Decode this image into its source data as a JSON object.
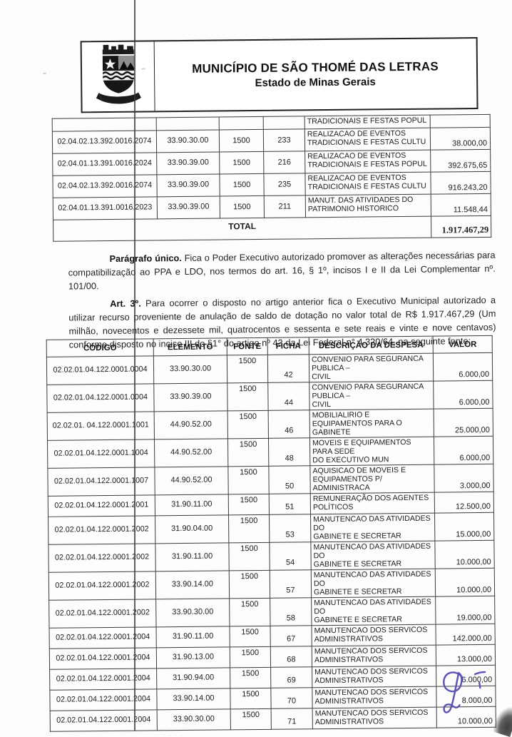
{
  "colors": {
    "ink_signature": "#5a52b4",
    "table_border": "#3c3c3c",
    "text": "#1d1d1d"
  },
  "header": {
    "title": "MUNICÍPIO DE SÃO THOMÉ DAS LETRAS",
    "subtitle": "Estado de Minas Gerais",
    "logo": "coat-of-arms-sao-thome-das-letras"
  },
  "table1": {
    "rows": [
      {
        "partial": true,
        "codigo": "",
        "elemento": "",
        "fonte": "",
        "ficha": "",
        "descricao": [
          "TRADICIONAIS E FESTAS POPUL"
        ],
        "valor": ""
      },
      {
        "codigo": "02.04.02.13.392.0016.2074",
        "elemento": "33.90.30.00",
        "fonte": "1500",
        "ficha": "233",
        "descricao": [
          "REALIZACAO DE EVENTOS",
          "TRADICIONAIS E FESTAS CULTU"
        ],
        "valor": "38.000,00"
      },
      {
        "codigo": "02.04.01.13.391.0016.2024",
        "elemento": "33.90.39.00",
        "fonte": "1500",
        "ficha": "216",
        "descricao": [
          "REALIZACAO DE EVENTOS",
          "TRADICIONAIS E FESTAS POPUL"
        ],
        "valor": "392.675,65"
      },
      {
        "codigo": "02.04.02.13.392.0016.2074",
        "elemento": "33.90.39.00",
        "fonte": "1500",
        "ficha": "235",
        "descricao": [
          "REALIZACAO DE EVENTOS",
          "TRADICIONAIS E FESTAS CULTU"
        ],
        "valor": "916.243,20"
      },
      {
        "codigo": "02.04.01.13.391.0016.2023",
        "elemento": "33.90.39.00",
        "fonte": "1500",
        "ficha": "211",
        "descricao": [
          "MANUT. DAS ATIVIDADES DO",
          "PATRIMONIO HISTORICO"
        ],
        "valor": "11.548,44"
      }
    ],
    "total_label": "TOTAL",
    "total_value": "1.917.467,29"
  },
  "paragraphs": {
    "paragrafo_unico_label": "Parágrafo único.",
    "paragrafo_unico_text": " Fica o Poder Executivo autorizado promover as alterações necessárias para compatibilização ao PPA e LDO, nos termos do art. 16, § 1º, incisos I e II da Lei Complementar nº. 101/00.",
    "art3_label": "Art. 3º.",
    "art3_text": " Para ocorrer o disposto no artigo anterior fica o Executivo Municipal autorizado a utilizar recurso proveniente de anulação de saldo de dotação no valor total de R$ 1.917.467,29 (Um milhão, novecentos e dezessete mil, quatrocentos e sessenta e sete reais e vinte e nove centavos) conforme disposto no inciso III do §1° do artigo nº 43 da Lei Federal n° 4.320/64, na seguinte fonte:"
  },
  "table2": {
    "headers": [
      "CÓDIGO",
      "ELEMENTO",
      "FONTE",
      "FICHA",
      "DESCRIÇÃO DA DESPESA",
      "VALOR"
    ],
    "rows": [
      {
        "codigo": "02.02.01.04.122.0001.0004",
        "elemento": "33.90.30.00",
        "fonte": "1500",
        "ficha": "42",
        "descricao": [
          "CONVENIO PARA SEGURANCA PUBLICA –",
          "CIVIL"
        ],
        "valor": "6.000,00"
      },
      {
        "codigo": "02.02.01.04.122.0001.0004",
        "elemento": "33.90.39.00",
        "fonte": "1500",
        "ficha": "44",
        "descricao": [
          "CONVENIO PARA SEGURANCA PUBLICA –",
          "CIVIL"
        ],
        "valor": "6.000,00"
      },
      {
        "codigo": "02.02.01. 04.122.0001.1001",
        "elemento": "44.90.52.00",
        "fonte": "1500",
        "ficha": "46",
        "descricao": [
          "MOBILIALIRIO E EQUIPAMENTOS PARA O",
          "GABINETE"
        ],
        "valor": "25.000,00"
      },
      {
        "codigo": "02.02.01.04.122.0001.1004",
        "elemento": "44.90.52.00",
        "fonte": "1500",
        "ficha": "48",
        "descricao": [
          "MOVEIS E EQUIPAMENTOS PARA SEDE",
          "DO EXECUTIVO MUN"
        ],
        "valor": "6.000,00"
      },
      {
        "codigo": "02.02.01.04.122.0001.1007",
        "elemento": "44.90.52.00",
        "fonte": "1500",
        "ficha": "50",
        "descricao": [
          "AQUISICAO DE MOVEIS E",
          "EQUIPAMENTOS P/ ADMINISTRACA"
        ],
        "valor": "3.000,00"
      },
      {
        "codigo": "02.02.01.04.122.0001.2001",
        "elemento": "31.90.11.00",
        "fonte": "1500",
        "ficha": "51",
        "descricao": [
          "REMUNERAÇÃO DOS AGENTES",
          "POLÍTICOS"
        ],
        "valor": "12.500,00"
      },
      {
        "codigo": "02.02.01.04.122.0001.2002",
        "elemento": "31.90.04.00",
        "fonte": "1500",
        "ficha": "53",
        "descricao": [
          "MANUTENCAO DAS ATIVIDADES DO",
          "GABINETE E SECRETAR"
        ],
        "valor": "15.000,00"
      },
      {
        "codigo": "02.02.01.04.122.0001.2002",
        "elemento": "31.90.11.00",
        "fonte": "1500",
        "ficha": "54",
        "descricao": [
          "MANUTENCAO DAS ATIVIDADES DO",
          "GABINETE E SECRETAR"
        ],
        "valor": "10.000,00"
      },
      {
        "codigo": "02.02.01.04.122.0001.2002",
        "elemento": "33.90.14.00",
        "fonte": "1500",
        "ficha": "57",
        "descricao": [
          "MANUTENCAO DAS ATIVIDADES DO",
          "GABINETE E SECRETAR"
        ],
        "valor": "10.000,00"
      },
      {
        "codigo": "02.02.01.04.122.0001.2002",
        "elemento": "33.90.30.00",
        "fonte": "1500",
        "ficha": "58",
        "descricao": [
          "MANUTENCAO DAS ATIVIDADES DO",
          "GABINETE E SECRETAR"
        ],
        "valor": "19.000,00"
      },
      {
        "codigo": "02.02.01.04.122.0001.2004",
        "elemento": "31.90.11.00",
        "fonte": "1500",
        "ficha": "67",
        "descricao": [
          "MANUTENCAO DOS SERVICOS",
          "ADMINISTRATIVOS"
        ],
        "valor": "142.000,00"
      },
      {
        "codigo": "02.02.01.04.122.0001.2004",
        "elemento": "31.90.13.00",
        "fonte": "1500",
        "ficha": "68",
        "descricao": [
          "MANUTENCAO DOS SERVICOS",
          "ADMINISTRATIVOS"
        ],
        "valor": "13.000,00"
      },
      {
        "codigo": "02.02.01.04.122.0001.2004",
        "elemento": "31.90.94.00",
        "fonte": "1500",
        "ficha": "69",
        "descricao": [
          "MANUTENCAO DOS SERVICOS",
          "ADMINISTRATIVOS"
        ],
        "valor": "6.000,00"
      },
      {
        "codigo": "02.02.01.04.122.0001.2004",
        "elemento": "33.90.14.00",
        "fonte": "1500",
        "ficha": "70",
        "descricao": [
          "MANUTENCAO DOS SERVICOS",
          "ADMINISTRATIVOS"
        ],
        "valor": "8.000,00"
      },
      {
        "codigo": "02.02.01.04.122.0001.2004",
        "elemento": "33.90.30.00",
        "fonte": "1500",
        "ficha": "71",
        "descricao": [
          "MANUTENCAO DOS SERVICOS",
          "ADMINISTRATIVOS"
        ],
        "valor": "10.000,00"
      }
    ]
  }
}
